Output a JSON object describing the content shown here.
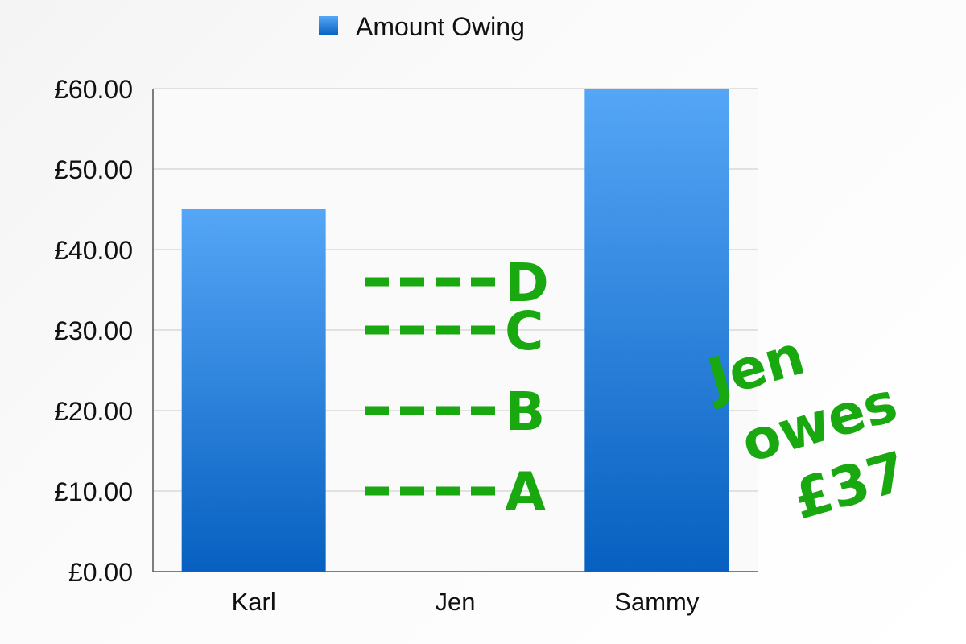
{
  "chart_data": {
    "type": "bar",
    "categories": [
      "Karl",
      "Jen",
      "Sammy"
    ],
    "series": [
      {
        "name": "Amount Owing",
        "values": [
          45,
          null,
          60
        ]
      }
    ],
    "ylim": [
      0,
      60
    ],
    "yticks": [
      0,
      10,
      20,
      30,
      40,
      50,
      60
    ],
    "ytick_labels": [
      "£0.00",
      "£10.00",
      "£20.00",
      "£30.00",
      "£40.00",
      "£50.00",
      "£60.00"
    ],
    "grid": true,
    "legend": "top",
    "bar_color_top": "#55a6f6",
    "bar_color_bottom": "#0760c0",
    "annotations": {
      "color": "#19a80f",
      "options": [
        {
          "label": "A",
          "value": 10
        },
        {
          "label": "B",
          "value": 20
        },
        {
          "label": "C",
          "value": 30
        },
        {
          "label": "D",
          "value": 36
        }
      ],
      "note_lines": [
        "Jen",
        "owes",
        "£37"
      ]
    }
  }
}
